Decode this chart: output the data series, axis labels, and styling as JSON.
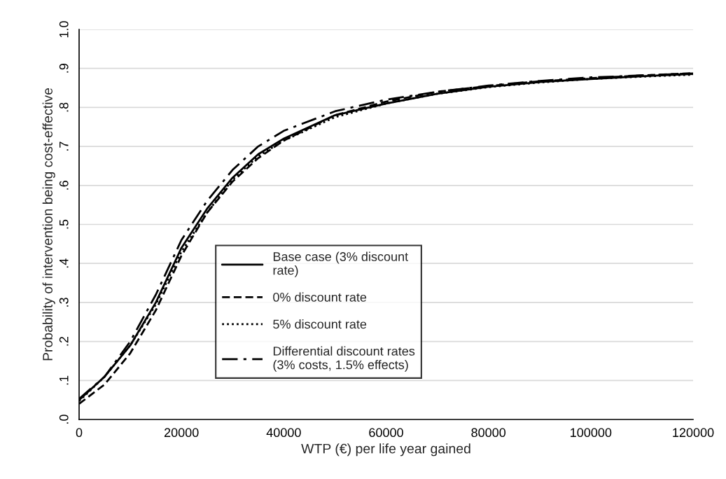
{
  "chart_data": {
    "type": "line",
    "xlabel": "WTP (€) per life year gained",
    "ylabel": "Probability of intervention being cost-effective",
    "x": [
      0,
      5000,
      10000,
      15000,
      20000,
      25000,
      30000,
      35000,
      40000,
      50000,
      60000,
      70000,
      80000,
      90000,
      100000,
      110000,
      120000
    ],
    "series": [
      {
        "name": "Base case (3% discount\nrate)",
        "color": "#000000",
        "line_style": "solid",
        "values": [
          0.05,
          0.11,
          0.19,
          0.3,
          0.44,
          0.54,
          0.62,
          0.68,
          0.72,
          0.78,
          0.81,
          0.835,
          0.853,
          0.865,
          0.873,
          0.88,
          0.886
        ]
      },
      {
        "name": "0% discount rate",
        "color": "#000000",
        "line_style": "dashed",
        "values": [
          0.04,
          0.09,
          0.17,
          0.28,
          0.42,
          0.53,
          0.61,
          0.67,
          0.715,
          0.78,
          0.815,
          0.84,
          0.855,
          0.867,
          0.875,
          0.882,
          0.888
        ]
      },
      {
        "name": "5% discount rate",
        "color": "#000000",
        "line_style": "dotted",
        "values": [
          0.047,
          0.11,
          0.19,
          0.295,
          0.43,
          0.53,
          0.615,
          0.675,
          0.715,
          0.775,
          0.81,
          0.835,
          0.852,
          0.864,
          0.873,
          0.879,
          0.884
        ]
      },
      {
        "name": "Differential discount rates\n(3% costs, 1.5% effects)",
        "color": "#000000",
        "line_style": "dashdot",
        "values": [
          0.053,
          0.11,
          0.2,
          0.32,
          0.46,
          0.56,
          0.64,
          0.7,
          0.74,
          0.79,
          0.82,
          0.84,
          0.856,
          0.868,
          0.877,
          0.882,
          0.887
        ]
      }
    ],
    "xlim": [
      0,
      120000
    ],
    "xticks": [
      0,
      20000,
      40000,
      60000,
      80000,
      100000,
      120000
    ],
    "ylim": [
      0,
      1.0
    ],
    "yticks": [
      {
        "value": 0,
        "label": ".0"
      },
      {
        "value": 0.1,
        "label": ".1"
      },
      {
        "value": 0.2,
        "label": ".2"
      },
      {
        "value": 0.3,
        "label": ".3"
      },
      {
        "value": 0.4,
        "label": ".4"
      },
      {
        "value": 0.5,
        "label": ".5"
      },
      {
        "value": 0.6,
        "label": ".6"
      },
      {
        "value": 0.7,
        "label": ".7"
      },
      {
        "value": 0.8,
        "label": ".8"
      },
      {
        "value": 0.9,
        "label": ".9"
      },
      {
        "value": 1.0,
        "label": "1.0"
      }
    ],
    "grid": "y",
    "legend": "bottom"
  }
}
